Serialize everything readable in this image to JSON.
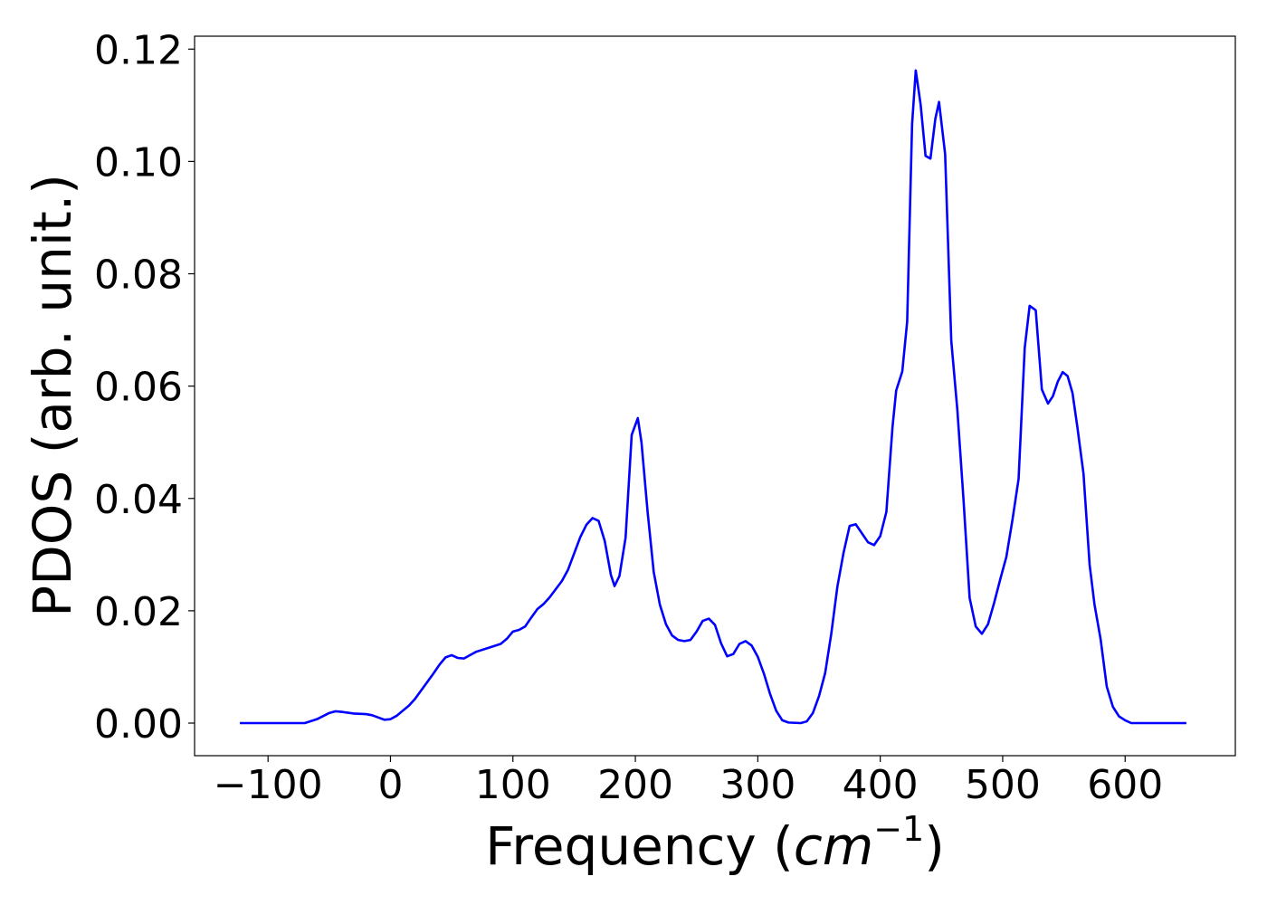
{
  "chart_data": {
    "type": "line",
    "title": "",
    "xlabel": "Frequency (",
    "xlabel_math": "cm",
    "xlabel_sup": "−1",
    "xlabel_close": ")",
    "ylabel": "PDOS (arb. unit.)",
    "xlim": [
      -160,
      690
    ],
    "ylim": [
      -0.0058,
      0.1223
    ],
    "x_ticks": [
      -100,
      0,
      100,
      200,
      300,
      400,
      500,
      600
    ],
    "x_tick_labels": [
      "−100",
      "0",
      "100",
      "200",
      "300",
      "400",
      "500",
      "600"
    ],
    "y_ticks": [
      0.0,
      0.02,
      0.04,
      0.06,
      0.08,
      0.1,
      0.12
    ],
    "y_tick_labels": [
      "0.00",
      "0.02",
      "0.04",
      "0.06",
      "0.08",
      "0.10",
      "0.12"
    ],
    "grid": false,
    "legend": "none",
    "series": [
      {
        "color": "#0000ff",
        "x": [
          -123,
          -70,
          -60,
          -50,
          -45,
          -40,
          -30,
          -20,
          -15,
          -10,
          -5,
          0,
          5,
          10,
          15,
          20,
          25,
          30,
          35,
          40,
          45,
          50,
          55,
          60,
          65,
          70,
          80,
          90,
          95,
          100,
          105,
          110,
          115,
          120,
          125,
          130,
          140,
          145,
          150,
          155,
          160,
          165,
          170,
          175,
          180,
          183,
          187,
          192,
          197,
          202,
          205,
          210,
          215,
          220,
          225,
          230,
          235,
          240,
          245,
          250,
          255,
          260,
          265,
          270,
          275,
          280,
          285,
          290,
          295,
          300,
          305,
          310,
          315,
          320,
          325,
          335,
          340,
          345,
          350,
          355,
          360,
          365,
          370,
          375,
          380,
          385,
          390,
          395,
          400,
          405,
          410,
          413,
          418,
          422,
          426,
          429,
          433,
          437,
          441,
          445,
          448,
          453,
          458,
          463,
          468,
          473,
          478,
          483,
          488,
          493,
          498,
          503,
          508,
          513,
          518,
          522,
          527,
          532,
          537,
          541,
          545,
          549,
          553,
          557,
          561,
          566,
          571,
          575,
          580,
          585,
          590,
          595,
          600,
          605,
          620,
          650
        ],
        "y": [
          0.0,
          0.0,
          0.0007,
          0.0018,
          0.0021,
          0.002,
          0.0017,
          0.0016,
          0.0014,
          0.001,
          0.0006,
          0.0007,
          0.0013,
          0.0022,
          0.0031,
          0.0043,
          0.0058,
          0.0073,
          0.0088,
          0.0104,
          0.0117,
          0.0121,
          0.0116,
          0.0115,
          0.0121,
          0.0127,
          0.0134,
          0.0141,
          0.015,
          0.0163,
          0.0166,
          0.0172,
          0.0188,
          0.0203,
          0.0212,
          0.0224,
          0.0253,
          0.0273,
          0.0302,
          0.0331,
          0.0353,
          0.0365,
          0.036,
          0.0324,
          0.0264,
          0.0244,
          0.0262,
          0.033,
          0.0513,
          0.0543,
          0.05,
          0.0376,
          0.0269,
          0.0211,
          0.0176,
          0.0156,
          0.0148,
          0.0146,
          0.0148,
          0.0163,
          0.0182,
          0.0186,
          0.0175,
          0.0142,
          0.0119,
          0.0123,
          0.0141,
          0.0146,
          0.0138,
          0.0118,
          0.0088,
          0.0052,
          0.0022,
          0.0005,
          0.0001,
          0.0,
          0.0003,
          0.0018,
          0.0048,
          0.0089,
          0.0159,
          0.0243,
          0.0303,
          0.0351,
          0.0354,
          0.0338,
          0.0322,
          0.0317,
          0.0333,
          0.0376,
          0.0527,
          0.0592,
          0.0626,
          0.0715,
          0.1066,
          0.1162,
          0.1101,
          0.101,
          0.1005,
          0.1076,
          0.1106,
          0.1013,
          0.0681,
          0.0557,
          0.0398,
          0.0223,
          0.0172,
          0.0159,
          0.0176,
          0.0214,
          0.0256,
          0.0296,
          0.0362,
          0.0435,
          0.0668,
          0.0743,
          0.0735,
          0.0594,
          0.0569,
          0.0582,
          0.0608,
          0.0625,
          0.0618,
          0.0588,
          0.0527,
          0.0444,
          0.0282,
          0.0211,
          0.0149,
          0.0065,
          0.0029,
          0.0012,
          0.0005,
          0.0,
          0.0,
          0.0
        ]
      }
    ]
  }
}
